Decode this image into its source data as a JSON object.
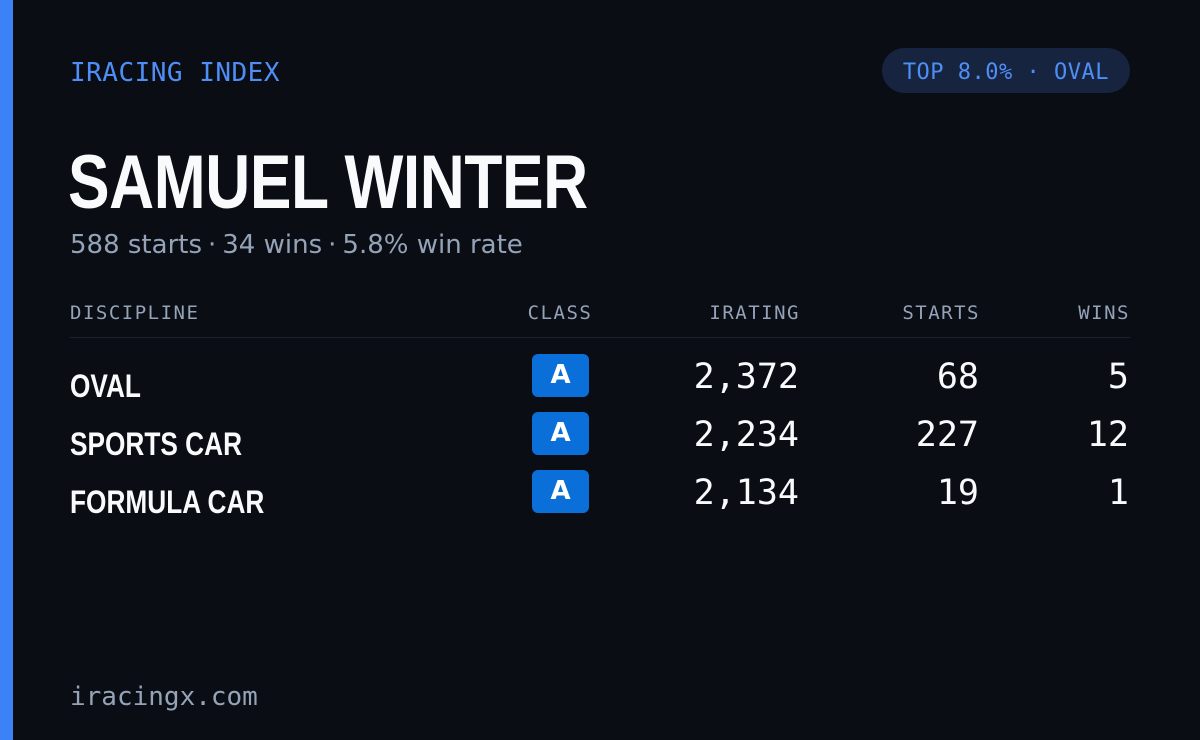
{
  "brand": "IRACING INDEX",
  "rank_badge": "TOP 8.0% · OVAL",
  "driver": {
    "name": "SAMUEL WINTER",
    "summary": {
      "starts": "588 starts",
      "wins": "34 wins",
      "win_rate": "5.8% win rate",
      "separator": "·"
    }
  },
  "table": {
    "headers": {
      "discipline": "DISCIPLINE",
      "class": "CLASS",
      "irating": "IRATING",
      "starts": "STARTS",
      "wins": "WINS"
    },
    "rows": [
      {
        "discipline": "OVAL",
        "class": "A",
        "irating": "2,372",
        "starts": "68",
        "wins": "5"
      },
      {
        "discipline": "SPORTS CAR",
        "class": "A",
        "irating": "2,234",
        "starts": "227",
        "wins": "12"
      },
      {
        "discipline": "FORMULA CAR",
        "class": "A",
        "irating": "2,134",
        "starts": "19",
        "wins": "1"
      }
    ]
  },
  "footer": "iracingx.com",
  "colors": {
    "background": "#0a0d14",
    "accent": "#3b82f6",
    "class_badge": "#0a6fd9",
    "muted_text": "#94a3b8",
    "primary_text": "#f8fafc"
  }
}
